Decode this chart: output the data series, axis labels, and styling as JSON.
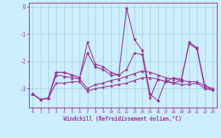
{
  "xlabel": "Windchill (Refroidissement éolien,°C)",
  "bg_color": "#cceeff",
  "grid_color": "#99cccc",
  "line_color": "#993399",
  "xlim": [
    -0.5,
    23.5
  ],
  "ylim": [
    -3.7,
    0.15
  ],
  "yticks": [
    0,
    -1,
    -2,
    -3
  ],
  "xticks": [
    0,
    1,
    2,
    3,
    4,
    5,
    6,
    7,
    8,
    9,
    10,
    11,
    12,
    13,
    14,
    15,
    16,
    17,
    18,
    19,
    20,
    21,
    22,
    23
  ],
  "hours": [
    0,
    1,
    2,
    3,
    4,
    5,
    6,
    7,
    8,
    9,
    10,
    11,
    12,
    13,
    14,
    15,
    16,
    17,
    18,
    19,
    20,
    21,
    22,
    23
  ],
  "s1": [
    -3.2,
    -3.4,
    -3.35,
    -2.4,
    -2.4,
    -2.5,
    -2.6,
    -1.7,
    -2.2,
    -2.3,
    -2.5,
    -2.5,
    -0.05,
    -1.2,
    -1.6,
    -3.2,
    -3.45,
    -2.7,
    -2.8,
    -2.7,
    -1.3,
    -1.5,
    -2.9,
    -3.05
  ],
  "s2": [
    -3.2,
    -3.4,
    -3.35,
    -2.4,
    -2.4,
    -2.5,
    -2.6,
    -1.3,
    -2.1,
    -2.2,
    -2.4,
    -2.5,
    -2.3,
    -1.7,
    -1.75,
    -3.35,
    -2.65,
    -2.75,
    -2.6,
    -2.65,
    -1.35,
    -1.55,
    -3.0,
    -3.05
  ],
  "s3": [
    -3.2,
    -3.4,
    -3.35,
    -2.5,
    -2.55,
    -2.6,
    -2.65,
    -3.0,
    -2.85,
    -2.8,
    -2.7,
    -2.65,
    -2.55,
    -2.45,
    -2.35,
    -2.4,
    -2.5,
    -2.6,
    -2.65,
    -2.7,
    -2.75,
    -2.75,
    -2.9,
    -3.0
  ],
  "s4": [
    -3.2,
    -3.4,
    -3.35,
    -2.8,
    -2.8,
    -2.75,
    -2.75,
    -3.1,
    -3.0,
    -2.95,
    -2.9,
    -2.85,
    -2.8,
    -2.7,
    -2.6,
    -2.6,
    -2.65,
    -2.75,
    -2.8,
    -2.85,
    -2.85,
    -2.8,
    -3.0,
    -3.05
  ]
}
